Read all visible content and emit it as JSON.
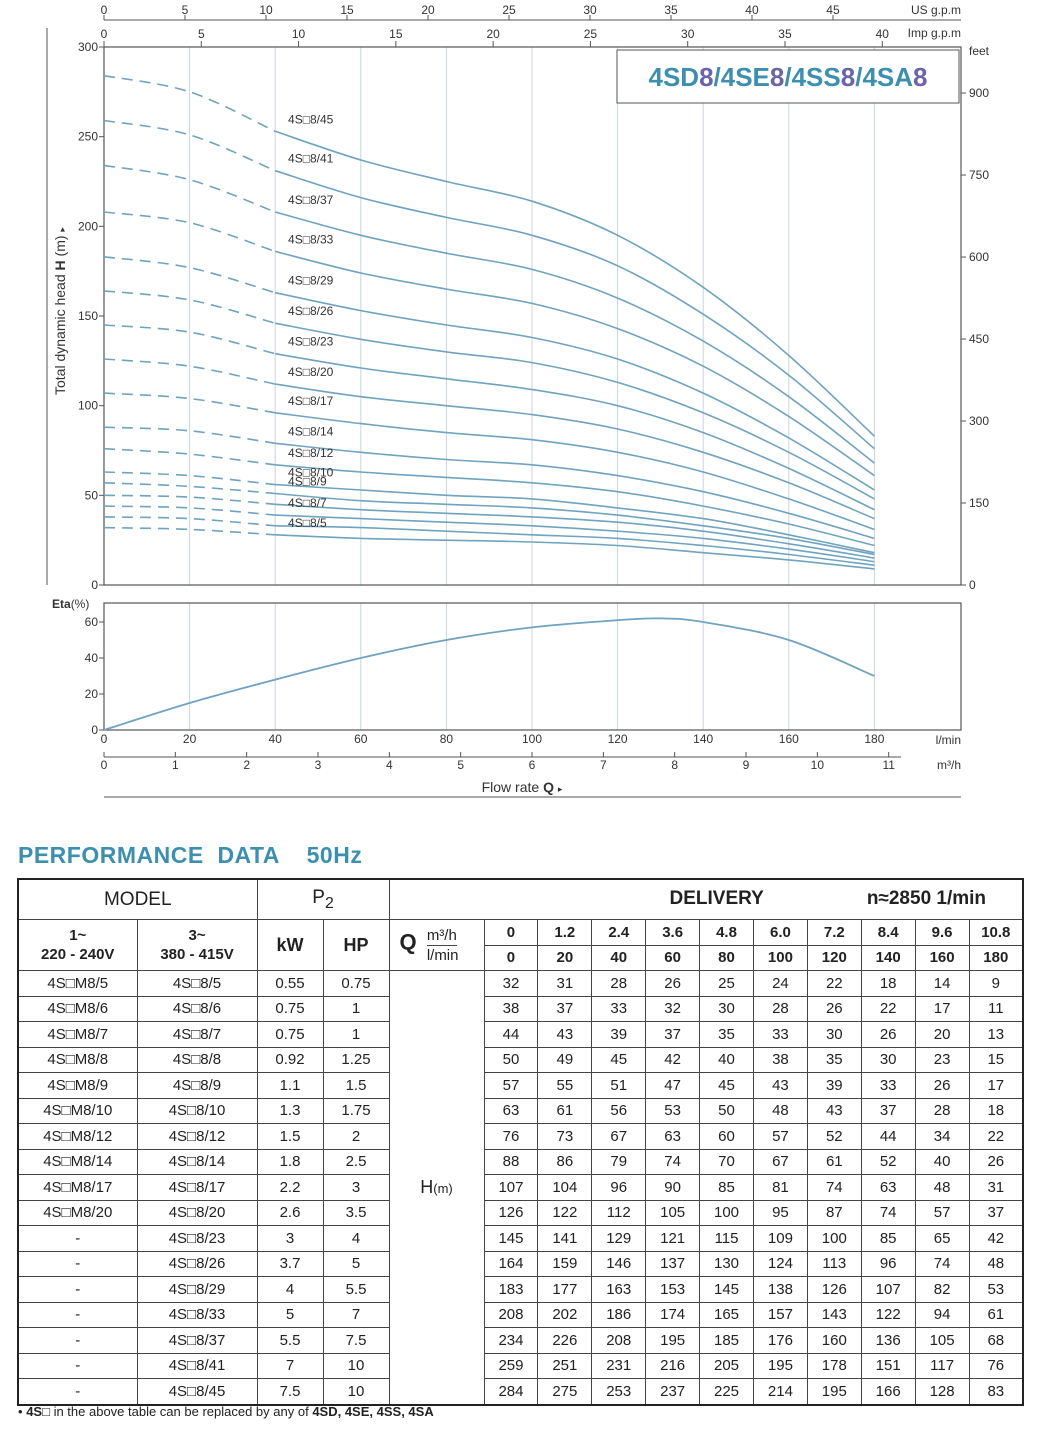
{
  "chart_data": [
    {
      "type": "line",
      "series_title": "4SD8/4SE8/4SS8/4SA8",
      "title_parts": [
        {
          "t": "4SD",
          "c": "#3d8fb0"
        },
        {
          "t": "8",
          "c": "#6b64a8"
        },
        {
          "t": "/4SE",
          "c": "#3d8fb0"
        },
        {
          "t": "8",
          "c": "#6b64a8"
        },
        {
          "t": "/4SS",
          "c": "#3d8fb0"
        },
        {
          "t": "8",
          "c": "#6b64a8"
        },
        {
          "t": "/4SA",
          "c": "#3d8fb0"
        },
        {
          "t": "8",
          "c": "#6b64a8"
        }
      ],
      "ylabel_prefix": "Total dynamic head ",
      "ylabel_bold": "H",
      "ylabel_unit": " (m)",
      "ylabel_arrow": "▸",
      "ylim": [
        0,
        300
      ],
      "yticks": [
        0,
        50,
        100,
        150,
        200,
        250,
        300
      ],
      "y2_unit": "feet",
      "y2_ticks": [
        0,
        150,
        300,
        450,
        600,
        750,
        900
      ],
      "top_axis_us_label": "US g.p.m",
      "top_axis_us_ticks": [
        0,
        5,
        10,
        15,
        20,
        25,
        30,
        35,
        40,
        45
      ],
      "top_axis_imp_label": "Imp g.p.m",
      "top_axis_imp_ticks": [
        0,
        5,
        10,
        15,
        20,
        25,
        30,
        35,
        40
      ],
      "x_unit": "l/min",
      "xlim": [
        0,
        200
      ],
      "x": [
        0,
        20,
        40,
        60,
        80,
        100,
        120,
        140,
        160,
        180
      ],
      "dashed_until": 40,
      "curve_label_x": 43,
      "series": [
        {
          "name": "4S□8/45",
          "values": [
            284,
            275,
            253,
            237,
            225,
            214,
            195,
            166,
            128,
            83
          ]
        },
        {
          "name": "4S□8/41",
          "values": [
            259,
            251,
            231,
            216,
            205,
            195,
            178,
            151,
            117,
            76
          ]
        },
        {
          "name": "4S□8/37",
          "values": [
            234,
            226,
            208,
            195,
            185,
            176,
            160,
            136,
            105,
            68
          ]
        },
        {
          "name": "4S□8/33",
          "values": [
            208,
            202,
            186,
            174,
            165,
            157,
            143,
            122,
            94,
            61
          ]
        },
        {
          "name": "4S□8/29",
          "values": [
            183,
            177,
            163,
            153,
            145,
            138,
            126,
            107,
            82,
            53
          ]
        },
        {
          "name": "4S□8/26",
          "values": [
            164,
            159,
            146,
            137,
            130,
            124,
            113,
            96,
            74,
            48
          ]
        },
        {
          "name": "4S□8/23",
          "values": [
            145,
            141,
            129,
            121,
            115,
            109,
            100,
            85,
            65,
            42
          ]
        },
        {
          "name": "4S□8/20",
          "values": [
            126,
            122,
            112,
            105,
            100,
            95,
            87,
            74,
            57,
            37
          ]
        },
        {
          "name": "4S□8/17",
          "values": [
            107,
            104,
            96,
            90,
            85,
            81,
            74,
            63,
            48,
            31
          ]
        },
        {
          "name": "4S□8/14",
          "values": [
            88,
            86,
            79,
            74,
            70,
            67,
            61,
            52,
            40,
            26
          ]
        },
        {
          "name": "4S□8/12",
          "values": [
            76,
            73,
            67,
            63,
            60,
            57,
            52,
            44,
            34,
            22
          ]
        },
        {
          "name": "4S□8/10",
          "values": [
            63,
            61,
            56,
            53,
            50,
            48,
            43,
            37,
            28,
            18
          ]
        },
        {
          "name": "4S□8/9",
          "values": [
            57,
            55,
            51,
            47,
            45,
            43,
            39,
            33,
            26,
            17
          ]
        },
        {
          "name": "4S□8/7",
          "values": [
            44,
            43,
            39,
            37,
            35,
            33,
            30,
            26,
            20,
            13
          ]
        },
        {
          "name": "4S□8/5",
          "values": [
            32,
            31,
            28,
            26,
            25,
            24,
            22,
            18,
            14,
            9
          ]
        }
      ],
      "hidden_series": [
        {
          "name": "4S□8/8",
          "values": [
            50,
            49,
            45,
            42,
            40,
            38,
            35,
            30,
            23,
            15
          ]
        },
        {
          "name": "4S□8/6",
          "values": [
            38,
            37,
            33,
            32,
            30,
            28,
            26,
            22,
            17,
            11
          ]
        }
      ],
      "line_color": "#6fa3c0"
    },
    {
      "type": "line",
      "ylabel_bold": "Eta",
      "ylabel_unit": "(%)",
      "ylim": [
        0,
        70
      ],
      "yticks": [
        0,
        20,
        40,
        60
      ],
      "xlim": [
        0,
        200
      ],
      "x_unit": "l/min",
      "xticks": [
        0,
        20,
        40,
        60,
        80,
        100,
        120,
        140,
        160,
        180
      ],
      "x2_unit": "m³/h",
      "x2_ticks": [
        0,
        1,
        2,
        3,
        4,
        5,
        6,
        7,
        8,
        9,
        10,
        11
      ],
      "xlabel_text": "Flow rate ",
      "xlabel_bold": "Q",
      "xlabel_arrow": "▸",
      "series": [
        {
          "name": "Eta",
          "x": [
            0,
            20,
            40,
            60,
            80,
            100,
            120,
            130,
            140,
            160,
            180
          ],
          "values": [
            0,
            15,
            28,
            40,
            50,
            57,
            61,
            62,
            60,
            50,
            30
          ]
        }
      ]
    }
  ],
  "table": {
    "title": "PERFORMANCE  DATA    50Hz",
    "model_header": "MODEL",
    "p2_header_main": "P",
    "p2_header_sub": "2",
    "delivery_header": "DELIVERY",
    "speed": "n≈2850 1/min",
    "col_1ph": "1~",
    "col_1ph_v": "220 - 240V",
    "col_3ph": "3~",
    "col_3ph_v": "380 - 415V",
    "kw": "kW",
    "hp": "HP",
    "q_label": "Q",
    "q_unit1": "m³/h",
    "q_unit2": "l/min",
    "q_m3h": [
      "0",
      "1.2",
      "2.4",
      "3.6",
      "4.8",
      "6.0",
      "7.2",
      "8.4",
      "9.6",
      "10.8"
    ],
    "q_lmin": [
      "0",
      "20",
      "40",
      "60",
      "80",
      "100",
      "120",
      "140",
      "160",
      "180"
    ],
    "h_label": "H",
    "h_unit": "(m)",
    "rows": [
      {
        "m1": "4S□M8/5",
        "m3": "4S□8/5",
        "kw": "0.55",
        "hp": "0.75",
        "h": [
          "32",
          "31",
          "28",
          "26",
          "25",
          "24",
          "22",
          "18",
          "14",
          "9"
        ]
      },
      {
        "m1": "4S□M8/6",
        "m3": "4S□8/6",
        "kw": "0.75",
        "hp": "1",
        "h": [
          "38",
          "37",
          "33",
          "32",
          "30",
          "28",
          "26",
          "22",
          "17",
          "11"
        ]
      },
      {
        "m1": "4S□M8/7",
        "m3": "4S□8/7",
        "kw": "0.75",
        "hp": "1",
        "h": [
          "44",
          "43",
          "39",
          "37",
          "35",
          "33",
          "30",
          "26",
          "20",
          "13"
        ]
      },
      {
        "m1": "4S□M8/8",
        "m3": "4S□8/8",
        "kw": "0.92",
        "hp": "1.25",
        "h": [
          "50",
          "49",
          "45",
          "42",
          "40",
          "38",
          "35",
          "30",
          "23",
          "15"
        ]
      },
      {
        "m1": "4S□M8/9",
        "m3": "4S□8/9",
        "kw": "1.1",
        "hp": "1.5",
        "h": [
          "57",
          "55",
          "51",
          "47",
          "45",
          "43",
          "39",
          "33",
          "26",
          "17"
        ]
      },
      {
        "m1": "4S□M8/10",
        "m3": "4S□8/10",
        "kw": "1.3",
        "hp": "1.75",
        "h": [
          "63",
          "61",
          "56",
          "53",
          "50",
          "48",
          "43",
          "37",
          "28",
          "18"
        ]
      },
      {
        "m1": "4S□M8/12",
        "m3": "4S□8/12",
        "kw": "1.5",
        "hp": "2",
        "h": [
          "76",
          "73",
          "67",
          "63",
          "60",
          "57",
          "52",
          "44",
          "34",
          "22"
        ]
      },
      {
        "m1": "4S□M8/14",
        "m3": "4S□8/14",
        "kw": "1.8",
        "hp": "2.5",
        "h": [
          "88",
          "86",
          "79",
          "74",
          "70",
          "67",
          "61",
          "52",
          "40",
          "26"
        ]
      },
      {
        "m1": "4S□M8/17",
        "m3": "4S□8/17",
        "kw": "2.2",
        "hp": "3",
        "h": [
          "107",
          "104",
          "96",
          "90",
          "85",
          "81",
          "74",
          "63",
          "48",
          "31"
        ]
      },
      {
        "m1": "4S□M8/20",
        "m3": "4S□8/20",
        "kw": "2.6",
        "hp": "3.5",
        "h": [
          "126",
          "122",
          "112",
          "105",
          "100",
          "95",
          "87",
          "74",
          "57",
          "37"
        ]
      },
      {
        "m1": "-",
        "m3": "4S□8/23",
        "kw": "3",
        "hp": "4",
        "h": [
          "145",
          "141",
          "129",
          "121",
          "115",
          "109",
          "100",
          "85",
          "65",
          "42"
        ]
      },
      {
        "m1": "-",
        "m3": "4S□8/26",
        "kw": "3.7",
        "hp": "5",
        "h": [
          "164",
          "159",
          "146",
          "137",
          "130",
          "124",
          "113",
          "96",
          "74",
          "48"
        ]
      },
      {
        "m1": "-",
        "m3": "4S□8/29",
        "kw": "4",
        "hp": "5.5",
        "h": [
          "183",
          "177",
          "163",
          "153",
          "145",
          "138",
          "126",
          "107",
          "82",
          "53"
        ]
      },
      {
        "m1": "-",
        "m3": "4S□8/33",
        "kw": "5",
        "hp": "7",
        "h": [
          "208",
          "202",
          "186",
          "174",
          "165",
          "157",
          "143",
          "122",
          "94",
          "61"
        ]
      },
      {
        "m1": "-",
        "m3": "4S□8/37",
        "kw": "5.5",
        "hp": "7.5",
        "h": [
          "234",
          "226",
          "208",
          "195",
          "185",
          "176",
          "160",
          "136",
          "105",
          "68"
        ]
      },
      {
        "m1": "-",
        "m3": "4S□8/41",
        "kw": "7",
        "hp": "10",
        "h": [
          "259",
          "251",
          "231",
          "216",
          "205",
          "195",
          "178",
          "151",
          "117",
          "76"
        ]
      },
      {
        "m1": "-",
        "m3": "4S□8/45",
        "kw": "7.5",
        "hp": "10",
        "h": [
          "284",
          "275",
          "253",
          "237",
          "225",
          "214",
          "195",
          "166",
          "128",
          "83"
        ]
      }
    ]
  },
  "footnote": {
    "bullet": "•",
    "prefix": "4S□",
    "text": " in the above table can be replaced by any of ",
    "options": "4SD, 4SE, 4SS, 4SA"
  }
}
